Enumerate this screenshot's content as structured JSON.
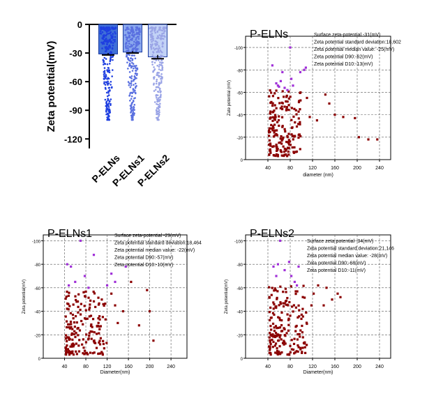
{
  "chart_data": [
    {
      "id": "bar",
      "type": "bar",
      "ylabel": "Zeta potential(mV)",
      "ylim": [
        -130,
        0
      ],
      "yticks": [
        0,
        -30,
        -60,
        -90,
        -120
      ],
      "categories": [
        "P-ELNs",
        "P-ELNs1",
        "P-ELNs2"
      ],
      "values": [
        -31,
        -29,
        -34
      ],
      "bar_colors": [
        "#3f6fd8",
        "#8aa8ee",
        "#c2d2f6"
      ],
      "point_colors": [
        "#1f3fe0",
        "#5a70e0",
        "#9aa4e6"
      ],
      "point_ranges": [
        [
          -100,
          -3
        ],
        [
          -100,
          -3
        ],
        [
          -100,
          -4
        ]
      ],
      "error": [
        1,
        1,
        2
      ]
    },
    {
      "id": "s1",
      "type": "scatter",
      "title": "P-ELNs",
      "xlabel": "diameter (nm)",
      "ylabel": "Zate potential (mV)",
      "xlim": [
        0,
        260
      ],
      "ylim": [
        0,
        -110
      ],
      "xticks": [
        40,
        80,
        120,
        160,
        200,
        240
      ],
      "yticks": [
        -100,
        -80,
        -60,
        -40,
        -20,
        0
      ],
      "annotations": [
        "Surface zeta-potential -31(mV)",
        "Zeta potential standard deviation:18,602",
        "Zeta potential median value: -25(mV)",
        "Zeta potential D90:-62(mV)",
        "Zeta potential D10:-13(mV)"
      ],
      "guide_x": [
        40,
        80,
        120,
        160,
        200,
        240
      ],
      "guide_y": [
        -20,
        -40,
        -60,
        -80,
        -100
      ],
      "outliers": [
        [
          236,
          -18
        ],
        [
          220,
          -18
        ],
        [
          203,
          -20
        ],
        [
          196,
          -37
        ],
        [
          175,
          -38
        ],
        [
          160,
          -40
        ],
        [
          150,
          -50
        ],
        [
          143,
          -58
        ],
        [
          128,
          -35
        ],
        [
          115,
          -38
        ],
        [
          110,
          -55
        ]
      ],
      "purple_points": [
        [
          48,
          -84
        ],
        [
          55,
          -68
        ],
        [
          58,
          -66
        ],
        [
          60,
          -65
        ],
        [
          63,
          -70
        ],
        [
          66,
          -78
        ],
        [
          70,
          -64
        ],
        [
          75,
          -62
        ],
        [
          80,
          -100
        ],
        [
          82,
          -72
        ],
        [
          85,
          -66
        ],
        [
          98,
          -78
        ],
        [
          105,
          -80
        ],
        [
          108,
          -82
        ]
      ],
      "purple_color": "#a030d8",
      "red_color": "#8b0000",
      "cluster": {
        "x": [
          42,
          100
        ],
        "y": [
          -3,
          -62
        ]
      }
    },
    {
      "id": "s2",
      "type": "scatter",
      "title": "P-ELNs1",
      "xlabel": "Diameter(nm)",
      "ylabel": "Zeta potential(mV)",
      "xlim": [
        0,
        270
      ],
      "ylim": [
        0,
        -105
      ],
      "xticks": [
        40,
        80,
        120,
        160,
        200,
        240
      ],
      "yticks": [
        -100,
        -80,
        -60,
        -40,
        -20,
        0
      ],
      "annotations": [
        "Surface zeta-potential -29(mV)",
        "Zeta potential standard deviation:18,464",
        "Zeta potential median value: -22(mV)",
        "Zeta potential D90:-57(mV)",
        "Zeta potential D10:-10(mV)"
      ],
      "guide_x": [
        40,
        80,
        120,
        160,
        200,
        240
      ],
      "guide_y": [
        -20,
        -40,
        -60,
        -80,
        -100
      ],
      "outliers": [
        [
          207,
          -15
        ],
        [
          200,
          -40
        ],
        [
          195,
          -58
        ],
        [
          180,
          -28
        ],
        [
          165,
          -65
        ],
        [
          150,
          -40
        ],
        [
          140,
          -30
        ],
        [
          135,
          -45
        ],
        [
          128,
          -55
        ],
        [
          110,
          -50
        ]
      ],
      "purple_points": [
        [
          45,
          -80
        ],
        [
          48,
          -62
        ],
        [
          52,
          -78
        ],
        [
          60,
          -65
        ],
        [
          70,
          -100
        ],
        [
          78,
          -70
        ],
        [
          85,
          -60
        ],
        [
          95,
          -88
        ],
        [
          120,
          -62
        ],
        [
          128,
          -72
        ],
        [
          135,
          -65
        ],
        [
          155,
          -78
        ]
      ],
      "purple_color": "#a030d8",
      "red_color": "#8b0000",
      "cluster": {
        "x": [
          42,
          120
        ],
        "y": [
          -3,
          -57
        ]
      }
    },
    {
      "id": "s3",
      "type": "scatter",
      "title": "P-ELNs2",
      "xlabel": "Diameter(nm)",
      "ylabel": "Zeta potential(mV)",
      "xlim": [
        0,
        260
      ],
      "ylim": [
        0,
        -105
      ],
      "xticks": [
        40,
        80,
        120,
        160,
        200,
        240
      ],
      "yticks": [
        -100,
        -80,
        -60,
        -40,
        -20,
        0
      ],
      "annotations": [
        "Surface zeta-potential -34(mV)",
        "Zeta potential standard deviation:21,146",
        "Zeta potential median value: -28(mV)",
        "Zeta potential D90:-68(mV)",
        "Zeta potential D10:-11(mV)"
      ],
      "guide_x": [
        40,
        80,
        120,
        160,
        200,
        240
      ],
      "guide_y": [
        -20,
        -40,
        -60,
        -80,
        -100
      ],
      "outliers": [
        [
          170,
          -52
        ],
        [
          165,
          -55
        ],
        [
          155,
          -50
        ],
        [
          145,
          -60
        ],
        [
          140,
          -45
        ],
        [
          130,
          -62
        ],
        [
          122,
          -55
        ],
        [
          118,
          -45
        ]
      ],
      "purple_points": [
        [
          50,
          -78
        ],
        [
          55,
          -70
        ],
        [
          58,
          -80
        ],
        [
          62,
          -100
        ],
        [
          70,
          -75
        ],
        [
          78,
          -82
        ],
        [
          82,
          -70
        ],
        [
          88,
          -65
        ],
        [
          92,
          -62
        ],
        [
          95,
          -78
        ]
      ],
      "purple_color": "#a030d8",
      "red_color": "#8b0000",
      "cluster": {
        "x": [
          42,
          110
        ],
        "y": [
          -3,
          -62
        ]
      }
    }
  ]
}
